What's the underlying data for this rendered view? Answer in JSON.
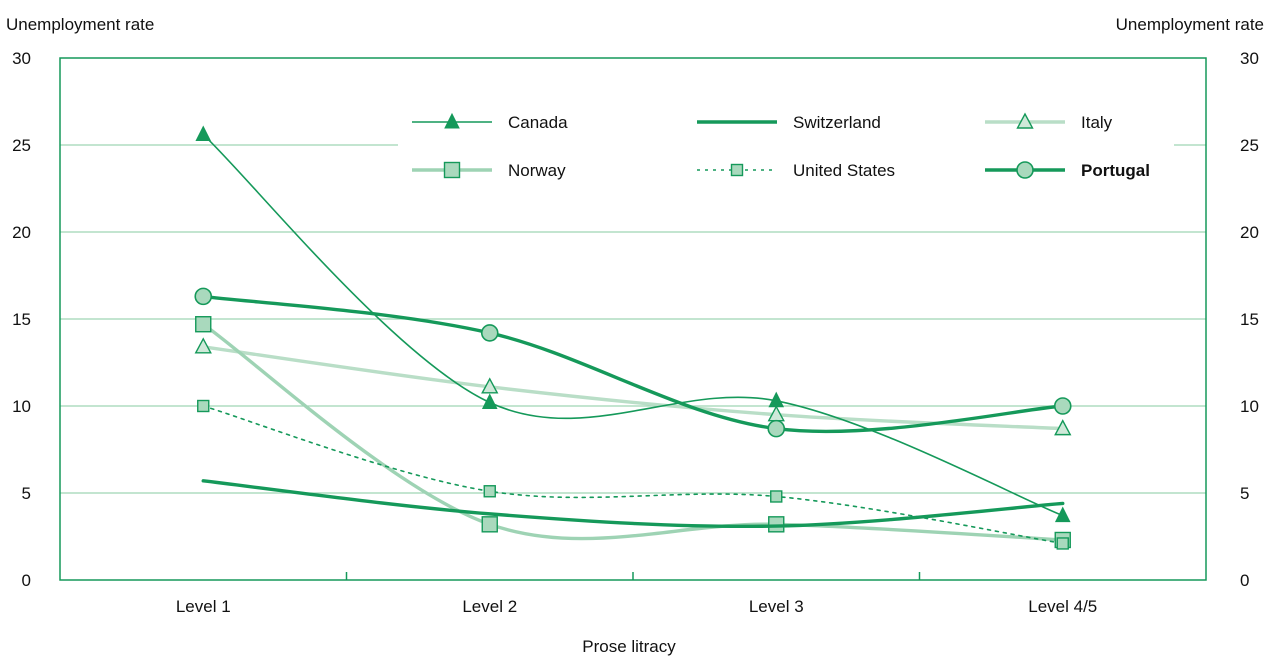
{
  "chart_data": {
    "type": "line",
    "xlabel": "Prose litracy",
    "ylabel_left": "Unemployment rate",
    "ylabel_right": "Unemployment rate",
    "categories": [
      "Level 1",
      "Level 2",
      "Level 3",
      "Level 4/5"
    ],
    "ylim": [
      0,
      30
    ],
    "yticks": [
      "0",
      "5",
      "10",
      "15",
      "20",
      "25",
      "30"
    ],
    "grid": true,
    "legend_position": "top-right",
    "series": [
      {
        "name": "Canada",
        "values": [
          25.6,
          10.2,
          10.3,
          3.7
        ],
        "color": "#15995a",
        "marker": "triangle-filled",
        "line": "thin"
      },
      {
        "name": "Switzerland",
        "values": [
          5.7,
          3.8,
          3.1,
          4.4
        ],
        "color": "#15995a",
        "marker": "none",
        "line": "thick"
      },
      {
        "name": "Italy",
        "values": [
          13.4,
          11.1,
          9.5,
          8.7
        ],
        "color": "#b9dec7",
        "marker": "triangle-open",
        "line": "thick"
      },
      {
        "name": "Norway",
        "values": [
          14.7,
          3.2,
          3.2,
          2.3
        ],
        "color": "#9ed3b4",
        "marker": "square",
        "line": "thick"
      },
      {
        "name": "United States",
        "values": [
          10.0,
          5.1,
          4.8,
          2.1
        ],
        "color": "#15995a",
        "marker": "square",
        "line": "dotted"
      },
      {
        "name": "Portugal",
        "values": [
          16.3,
          14.2,
          8.7,
          10.0
        ],
        "color": "#15995a",
        "marker": "circle",
        "line": "thick",
        "highlight": true
      }
    ]
  }
}
